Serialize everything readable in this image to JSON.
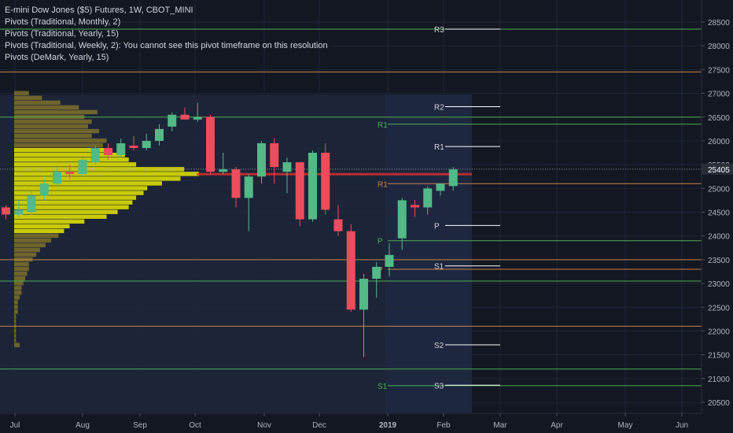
{
  "legend": {
    "title": "E-mini Dow Jones ($5) Futures, 1W, CBOT_MINI",
    "pivot_monthly": "Pivots (Traditional, Monthly, 2)",
    "pivot_yearly": "Pivots (Traditional, Yearly, 15)",
    "pivot_weekly": "Pivots (Traditional, Weekly, 2): You cannot see this pivot timeframe on this resolution",
    "pivot_demark": "Pivots (DeMark, Yearly, 15)"
  },
  "colors": {
    "background": "#131722",
    "up": "#53b987",
    "down": "#eb4d5c",
    "monthly_pivot": "#4caf50",
    "yearly_pivot": "#c8834a",
    "projection_pivot": "#ffffff",
    "volume_profile": "#e8e800",
    "volume_profile_dim": "#8b7a2a",
    "poc": "#d32f2f",
    "axis_text": "#b2b5be"
  },
  "chart_data": {
    "type": "candlestick",
    "symbol": "E-mini Dow Jones ($5) Futures",
    "interval": "1W",
    "exchange": "CBOT_MINI",
    "current_price": 25405,
    "y_ticks": [
      20500,
      21000,
      21500,
      22000,
      22500,
      23000,
      23500,
      24000,
      24500,
      25000,
      25500,
      26000,
      26500,
      27000,
      27500,
      28000,
      28500
    ],
    "x_labels": [
      "Jul",
      "Aug",
      "Sep",
      "Oct",
      "Nov",
      "Dec",
      "2019",
      "Feb",
      "Mar",
      "Apr",
      "May",
      "Jun"
    ],
    "candles": [
      {
        "o": 24600,
        "h": 24650,
        "l": 24350,
        "c": 24450
      },
      {
        "o": 24450,
        "h": 24750,
        "l": 24400,
        "c": 24550
      },
      {
        "o": 24500,
        "h": 24950,
        "l": 24450,
        "c": 24850
      },
      {
        "o": 24850,
        "h": 25200,
        "l": 24750,
        "c": 25100
      },
      {
        "o": 25100,
        "h": 25450,
        "l": 25050,
        "c": 25350
      },
      {
        "o": 25350,
        "h": 25500,
        "l": 25200,
        "c": 25300
      },
      {
        "o": 25300,
        "h": 25650,
        "l": 25250,
        "c": 25600
      },
      {
        "o": 25550,
        "h": 25900,
        "l": 25500,
        "c": 25850
      },
      {
        "o": 25850,
        "h": 25950,
        "l": 25600,
        "c": 25700
      },
      {
        "o": 25700,
        "h": 26050,
        "l": 25650,
        "c": 25950
      },
      {
        "o": 25900,
        "h": 26100,
        "l": 25800,
        "c": 25850
      },
      {
        "o": 25850,
        "h": 26150,
        "l": 25800,
        "c": 26000
      },
      {
        "o": 26000,
        "h": 26350,
        "l": 25900,
        "c": 26250
      },
      {
        "o": 26300,
        "h": 26600,
        "l": 26200,
        "c": 26550
      },
      {
        "o": 26550,
        "h": 26700,
        "l": 26450,
        "c": 26450
      },
      {
        "o": 26450,
        "h": 26800,
        "l": 26400,
        "c": 26500
      },
      {
        "o": 26500,
        "h": 26550,
        "l": 25300,
        "c": 25350
      },
      {
        "o": 25350,
        "h": 25750,
        "l": 25300,
        "c": 25400
      },
      {
        "o": 25400,
        "h": 25450,
        "l": 24600,
        "c": 24800
      },
      {
        "o": 24800,
        "h": 25300,
        "l": 24100,
        "c": 25250
      },
      {
        "o": 25250,
        "h": 26000,
        "l": 25100,
        "c": 25950
      },
      {
        "o": 25950,
        "h": 26050,
        "l": 25100,
        "c": 25450
      },
      {
        "o": 25350,
        "h": 25650,
        "l": 24900,
        "c": 25550
      },
      {
        "o": 25550,
        "h": 25500,
        "l": 24200,
        "c": 24350
      },
      {
        "o": 24350,
        "h": 25800,
        "l": 24300,
        "c": 25750
      },
      {
        "o": 25750,
        "h": 25950,
        "l": 24450,
        "c": 24550
      },
      {
        "o": 24350,
        "h": 24650,
        "l": 24000,
        "c": 24100
      },
      {
        "o": 24100,
        "h": 24250,
        "l": 22400,
        "c": 22450
      },
      {
        "o": 22450,
        "h": 23200,
        "l": 21450,
        "c": 23100
      },
      {
        "o": 23100,
        "h": 23450,
        "l": 22700,
        "c": 23350
      },
      {
        "o": 23350,
        "h": 23850,
        "l": 23150,
        "c": 23600
      },
      {
        "o": 23950,
        "h": 24800,
        "l": 23700,
        "c": 24750
      },
      {
        "o": 24650,
        "h": 24750,
        "l": 24400,
        "c": 24600
      },
      {
        "o": 24600,
        "h": 25050,
        "l": 24450,
        "c": 25000
      },
      {
        "o": 24950,
        "h": 25100,
        "l": 24850,
        "c": 25100
      },
      {
        "o": 25050,
        "h": 25450,
        "l": 24950,
        "c": 25400
      }
    ],
    "pivot_lines": [
      {
        "label": "",
        "value": 28350,
        "color": "#4caf50",
        "span": "full"
      },
      {
        "label": "",
        "value": 27450,
        "color": "#c8834a",
        "span": "full"
      },
      {
        "label": "",
        "value": 26500,
        "color": "#4caf50",
        "span": "left"
      },
      {
        "label": "R1",
        "value": 26350,
        "color": "#4caf50",
        "span": "right"
      },
      {
        "label": "R1",
        "value": 25100,
        "color": "#c8834a",
        "span": "right"
      },
      {
        "label": "P",
        "value": 23900,
        "color": "#4caf50",
        "span": "right"
      },
      {
        "label": "",
        "value": 23500,
        "color": "#c8834a",
        "span": "left"
      },
      {
        "label": "P",
        "value": 23300,
        "color": "#c8834a",
        "span": "right"
      },
      {
        "label": "",
        "value": 23050,
        "color": "#4caf50",
        "span": "left"
      },
      {
        "label": "",
        "value": 22100,
        "color": "#c8834a",
        "span": "left"
      },
      {
        "label": "",
        "value": 21200,
        "color": "#4caf50",
        "span": "left"
      },
      {
        "label": "S1",
        "value": 20850,
        "color": "#4caf50",
        "span": "right"
      }
    ],
    "projection_pivots": [
      {
        "label": "R3",
        "value": 28350
      },
      {
        "label": "R2",
        "value": 26720
      },
      {
        "label": "R1",
        "value": 25880
      },
      {
        "label": "P",
        "value": 24220
      },
      {
        "label": "S1",
        "value": 23370
      },
      {
        "label": "S2",
        "value": 21710
      },
      {
        "label": "S3",
        "value": 20860
      }
    ],
    "poc_level": 25300,
    "volume_profile": [
      {
        "p": 27000,
        "v": 0.08
      },
      {
        "p": 26900,
        "v": 0.15
      },
      {
        "p": 26800,
        "v": 0.25
      },
      {
        "p": 26700,
        "v": 0.35
      },
      {
        "p": 26600,
        "v": 0.45
      },
      {
        "p": 26500,
        "v": 0.38
      },
      {
        "p": 26400,
        "v": 0.42
      },
      {
        "p": 26300,
        "v": 0.4
      },
      {
        "p": 26200,
        "v": 0.46
      },
      {
        "p": 26100,
        "v": 0.42
      },
      {
        "p": 26000,
        "v": 0.5
      },
      {
        "p": 25900,
        "v": 0.48
      },
      {
        "p": 25800,
        "v": 0.52
      },
      {
        "p": 25700,
        "v": 0.6
      },
      {
        "p": 25600,
        "v": 0.62
      },
      {
        "p": 25500,
        "v": 0.66
      },
      {
        "p": 25400,
        "v": 0.92
      },
      {
        "p": 25300,
        "v": 1.0
      },
      {
        "p": 25200,
        "v": 0.9
      },
      {
        "p": 25100,
        "v": 0.8
      },
      {
        "p": 25000,
        "v": 0.72
      },
      {
        "p": 24900,
        "v": 0.7
      },
      {
        "p": 24800,
        "v": 0.66
      },
      {
        "p": 24700,
        "v": 0.64
      },
      {
        "p": 24600,
        "v": 0.62
      },
      {
        "p": 24500,
        "v": 0.56
      },
      {
        "p": 24400,
        "v": 0.5
      },
      {
        "p": 24300,
        "v": 0.38
      },
      {
        "p": 24200,
        "v": 0.3
      },
      {
        "p": 24100,
        "v": 0.27
      },
      {
        "p": 24000,
        "v": 0.24
      },
      {
        "p": 23900,
        "v": 0.2
      },
      {
        "p": 23800,
        "v": 0.17
      },
      {
        "p": 23700,
        "v": 0.14
      },
      {
        "p": 23600,
        "v": 0.12
      },
      {
        "p": 23500,
        "v": 0.1
      },
      {
        "p": 23400,
        "v": 0.08
      },
      {
        "p": 23300,
        "v": 0.08
      },
      {
        "p": 23200,
        "v": 0.07
      },
      {
        "p": 23100,
        "v": 0.06
      },
      {
        "p": 23000,
        "v": 0.05
      },
      {
        "p": 22900,
        "v": 0.04
      },
      {
        "p": 22800,
        "v": 0.04
      },
      {
        "p": 22700,
        "v": 0.03
      },
      {
        "p": 22600,
        "v": 0.02
      },
      {
        "p": 22500,
        "v": 0.02
      },
      {
        "p": 22400,
        "v": 0.02
      },
      {
        "p": 22300,
        "v": 0.01
      },
      {
        "p": 22200,
        "v": 0.01
      },
      {
        "p": 22100,
        "v": 0.01
      },
      {
        "p": 22000,
        "v": 0.01
      },
      {
        "p": 21900,
        "v": 0.01
      },
      {
        "p": 21800,
        "v": 0.01
      },
      {
        "p": 21700,
        "v": 0.03
      }
    ]
  }
}
